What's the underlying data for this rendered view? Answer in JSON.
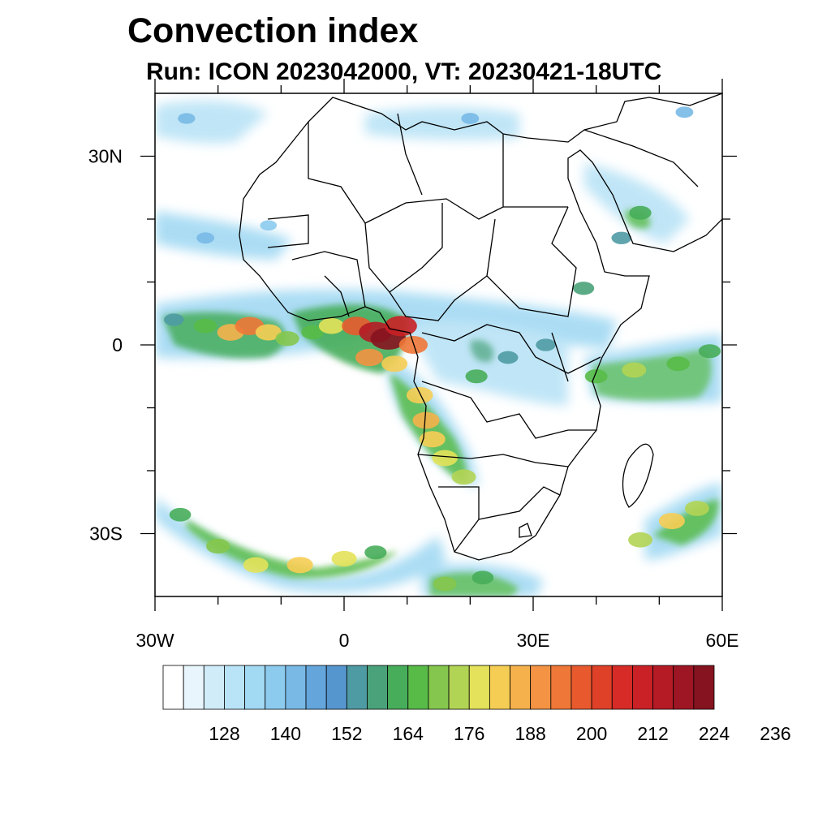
{
  "title": "Convection index",
  "subtitle": "Run: ICON 2023042000,  VT: 20230421-18UTC",
  "map": {
    "lon_range": [
      -30,
      60
    ],
    "lat_range": [
      -40,
      40
    ],
    "lat_ticks": [
      {
        "value": 30,
        "label": "30N"
      },
      {
        "value": 0,
        "label": "0"
      },
      {
        "value": -30,
        "label": "30S"
      }
    ],
    "lon_ticks": [
      {
        "value": -30,
        "label": "30W"
      },
      {
        "value": 0,
        "label": "0"
      },
      {
        "value": 30,
        "label": "30E"
      },
      {
        "value": 60,
        "label": "60E"
      }
    ]
  },
  "colorbar": {
    "colors": [
      "#ffffff",
      "#e8f5fc",
      "#d0ecf8",
      "#b9e3f6",
      "#a2d9f3",
      "#8ccbee",
      "#78b9e6",
      "#64a6dc",
      "#5696cf",
      "#4f9ba4",
      "#4aa27a",
      "#47ad5a",
      "#58bb48",
      "#85c74e",
      "#b2d454",
      "#e3e25a",
      "#f6cd54",
      "#f5b14b",
      "#f39343",
      "#ef7737",
      "#e85a2e",
      "#df4128",
      "#d62b26",
      "#c92126",
      "#b51b25",
      "#9e1623",
      "#861320"
    ],
    "labels": [
      "128",
      "140",
      "152",
      "164",
      "176",
      "188",
      "200",
      "212",
      "224",
      "236"
    ]
  },
  "convection_cells": [
    {
      "lon": -27,
      "lat": 4,
      "v": 150
    },
    {
      "lon": -22,
      "lat": 3,
      "v": 165
    },
    {
      "lon": -18,
      "lat": 2,
      "v": 182
    },
    {
      "lon": -15,
      "lat": 3,
      "v": 192
    },
    {
      "lon": -12,
      "lat": 2,
      "v": 178
    },
    {
      "lon": -9,
      "lat": 1,
      "v": 168
    },
    {
      "lon": -5,
      "lat": 2,
      "v": 162
    },
    {
      "lon": -2,
      "lat": 3,
      "v": 175
    },
    {
      "lon": 2,
      "lat": 3,
      "v": 196
    },
    {
      "lon": 5,
      "lat": 2,
      "v": 212
    },
    {
      "lon": 7,
      "lat": 1,
      "v": 222
    },
    {
      "lon": 9,
      "lat": 3,
      "v": 208
    },
    {
      "lon": 11,
      "lat": 0,
      "v": 190
    },
    {
      "lon": 4,
      "lat": -2,
      "v": 186
    },
    {
      "lon": 8,
      "lat": -3,
      "v": 178
    },
    {
      "lon": 12,
      "lat": -8,
      "v": 180
    },
    {
      "lon": 13,
      "lat": -12,
      "v": 182
    },
    {
      "lon": 14,
      "lat": -15,
      "v": 178
    },
    {
      "lon": 16,
      "lat": -18,
      "v": 176
    },
    {
      "lon": 19,
      "lat": -21,
      "v": 170
    },
    {
      "lon": 21,
      "lat": -5,
      "v": 160
    },
    {
      "lon": 26,
      "lat": -2,
      "v": 152
    },
    {
      "lon": 32,
      "lat": 0,
      "v": 150
    },
    {
      "lon": 40,
      "lat": -5,
      "v": 162
    },
    {
      "lon": 46,
      "lat": -4,
      "v": 170
    },
    {
      "lon": 53,
      "lat": -3,
      "v": 165
    },
    {
      "lon": 58,
      "lat": -1,
      "v": 160
    },
    {
      "lon": 47,
      "lat": -31,
      "v": 170
    },
    {
      "lon": 52,
      "lat": -28,
      "v": 178
    },
    {
      "lon": 56,
      "lat": -26,
      "v": 170
    },
    {
      "lon": -26,
      "lat": -27,
      "v": 158
    },
    {
      "lon": -20,
      "lat": -32,
      "v": 168
    },
    {
      "lon": -14,
      "lat": -35,
      "v": 174
    },
    {
      "lon": -7,
      "lat": -35,
      "v": 178
    },
    {
      "lon": 0,
      "lat": -34,
      "v": 174
    },
    {
      "lon": 5,
      "lat": -33,
      "v": 160
    },
    {
      "lon": 16,
      "lat": -38,
      "v": 166
    },
    {
      "lon": 22,
      "lat": -37,
      "v": 158
    },
    {
      "lon": -22,
      "lat": 17,
      "v": 140
    },
    {
      "lon": -12,
      "lat": 19,
      "v": 135
    },
    {
      "lon": -25,
      "lat": 36,
      "v": 138
    },
    {
      "lon": 47,
      "lat": 21,
      "v": 160
    },
    {
      "lon": 44,
      "lat": 17,
      "v": 150
    },
    {
      "lon": 38,
      "lat": 9,
      "v": 156
    },
    {
      "lon": 20,
      "lat": 36,
      "v": 140
    },
    {
      "lon": 54,
      "lat": 37,
      "v": 140
    }
  ]
}
